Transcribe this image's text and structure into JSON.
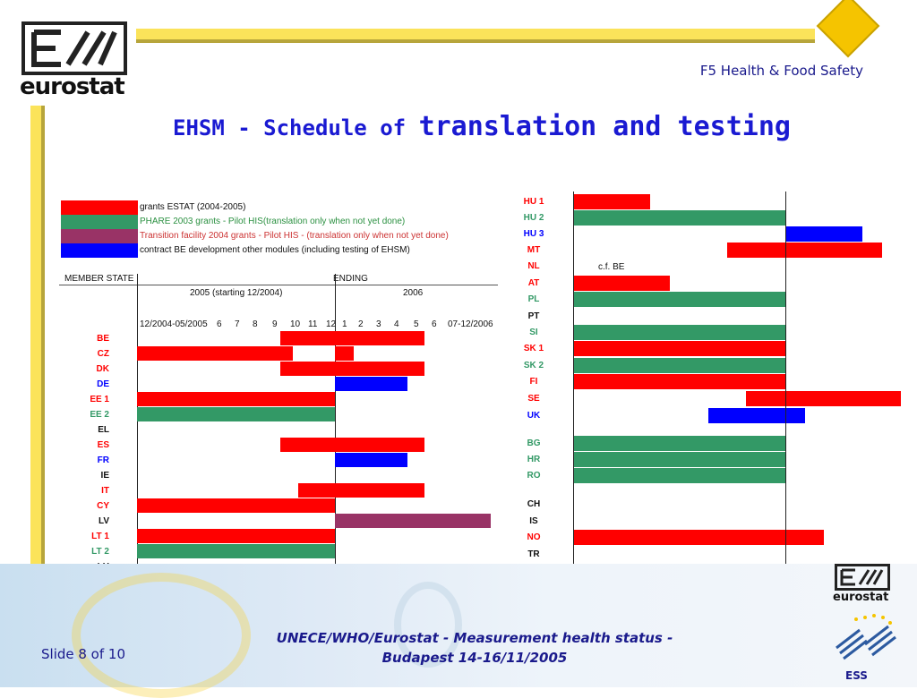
{
  "header": {
    "logo_text": "eurostat",
    "department": "F5 Health & Food Safety",
    "title_part1": "EHSM - Schedule of ",
    "title_part2": "translation and testing"
  },
  "legend": [
    {
      "label": "grants ESTAT (2004-2005)",
      "color": "#ff0000",
      "text_color": "#111111"
    },
    {
      "label": "PHARE 2003 grants - Pilot HIS(translation only when not yet done)",
      "color": "#339966",
      "text_color": "#2a9040"
    },
    {
      "label": "Transition facility 2004 grants - Pilot HIS - (translation only when not yet done)",
      "color": "#993366",
      "text_color": "#cc3333"
    },
    {
      "label": "contract BE development other modules (including testing of EHSM)",
      "color": "#0000ff",
      "text_color": "#111111"
    }
  ],
  "left_chart": {
    "member_state_label": "MEMBER STATE",
    "ending_label": "ENDING",
    "period_2005_label": "2005 (starting 12/2004)",
    "period_2006_label": "2006",
    "columns": [
      "12/2004-05/2005",
      "6",
      "7",
      "8",
      "9",
      "10",
      "11",
      "12",
      "1",
      "2",
      "3",
      "4",
      "5",
      "6",
      "07-12/2006"
    ],
    "rows": [
      {
        "label": "BE",
        "label_color": "#ff0000"
      },
      {
        "label": "CZ",
        "label_color": "#ff0000"
      },
      {
        "label": "DK",
        "label_color": "#ff0000"
      },
      {
        "label": "DE",
        "label_color": "#0000ff"
      },
      {
        "label": "EE 1",
        "label_color": "#ff0000"
      },
      {
        "label": "EE 2",
        "label_color": "#339966"
      },
      {
        "label": "EL",
        "label_color": "#111111"
      },
      {
        "label": "ES",
        "label_color": "#ff0000"
      },
      {
        "label": "FR",
        "label_color": "#0000ff"
      },
      {
        "label": "IE",
        "label_color": "#111111"
      },
      {
        "label": "IT",
        "label_color": "#ff0000"
      },
      {
        "label": "CY",
        "label_color": "#ff0000"
      },
      {
        "label": "LV",
        "label_color": "#111111"
      },
      {
        "label": "LT 1",
        "label_color": "#ff0000"
      },
      {
        "label": "LT 2",
        "label_color": "#339966"
      },
      {
        "label": "LU",
        "label_color": "#111111"
      }
    ]
  },
  "right_chart": {
    "note": "c.f. BE",
    "rows": [
      {
        "label": "HU 1",
        "label_color": "#ff0000"
      },
      {
        "label": "HU 2",
        "label_color": "#339966"
      },
      {
        "label": "HU 3",
        "label_color": "#0000ff"
      },
      {
        "label": "MT",
        "label_color": "#ff0000"
      },
      {
        "label": "NL",
        "label_color": "#ff0000"
      },
      {
        "label": "AT",
        "label_color": "#ff0000"
      },
      {
        "label": "PL",
        "label_color": "#339966"
      },
      {
        "label": "PT",
        "label_color": "#111111"
      },
      {
        "label": "SI",
        "label_color": "#339966"
      },
      {
        "label": "SK 1",
        "label_color": "#ff0000"
      },
      {
        "label": "SK 2",
        "label_color": "#339966"
      },
      {
        "label": "FI",
        "label_color": "#ff0000"
      },
      {
        "label": "SE",
        "label_color": "#ff0000"
      },
      {
        "label": "UK",
        "label_color": "#0000ff"
      },
      {
        "label": "BG",
        "label_color": "#339966"
      },
      {
        "label": "HR",
        "label_color": "#339966"
      },
      {
        "label": "RO",
        "label_color": "#339966"
      },
      {
        "label": "CH",
        "label_color": "#111111"
      },
      {
        "label": "IS",
        "label_color": "#111111"
      },
      {
        "label": "NO",
        "label_color": "#ff0000"
      },
      {
        "label": "TR",
        "label_color": "#111111"
      }
    ]
  },
  "footer": {
    "slide_number": "Slide 8 of 10",
    "line1": "UNECE/WHO/Eurostat - Measurement health status -",
    "line2": "Budapest 14-16/11/2005",
    "logo_text": "eurostat",
    "ess_text": "ESS"
  }
}
